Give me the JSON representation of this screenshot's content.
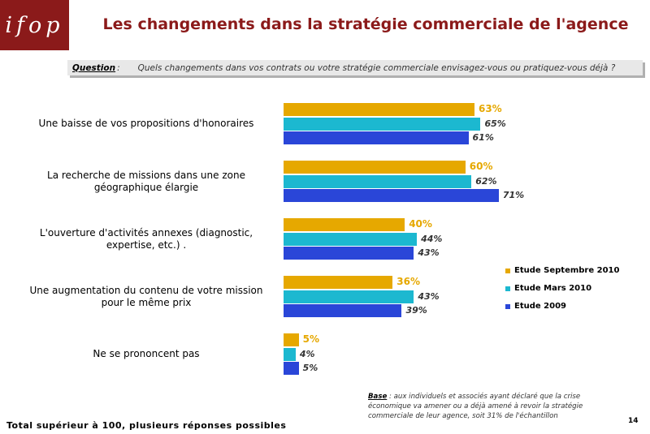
{
  "logo": {
    "text": "ifop"
  },
  "title": "Les changements dans la stratégie commerciale de l'agence",
  "question": {
    "label": "Question",
    "colon": ":",
    "text": "Quels changements dans vos contrats ou votre stratégie commerciale envisagez-vous ou pratiquez-vous déjà ?"
  },
  "chart_data": {
    "type": "bar",
    "orientation": "horizontal",
    "categories": [
      "Une baisse de vos propositions d'honoraires",
      "La recherche de missions dans une zone géographique élargie",
      "L'ouverture d'activités annexes (diagnostic, expertise, etc.) .",
      "Une augmentation du contenu de votre mission pour le même prix",
      "Ne se prononcent pas"
    ],
    "series": [
      {
        "name": "Etude Septembre 2010",
        "color": "#e6a800",
        "values": [
          63,
          60,
          40,
          36,
          5
        ],
        "labels": [
          "63%",
          "60%",
          "40%",
          "36%",
          "5%"
        ]
      },
      {
        "name": "Etude Mars 2010",
        "color": "#1cb8d0",
        "values": [
          65,
          62,
          44,
          43,
          4
        ],
        "labels": [
          "65%",
          "62%",
          "44%",
          "43%",
          "4%"
        ]
      },
      {
        "name": "Etude 2009",
        "color": "#2a46d8",
        "values": [
          61,
          71,
          43,
          39,
          5
        ],
        "labels": [
          "61%",
          "71%",
          "43%",
          "39%",
          "5%"
        ]
      }
    ],
    "unit": "%",
    "legend_position": "right"
  },
  "base_note": {
    "label": "Base",
    "text": " : aux individuels et associés ayant déclaré que la crise économique va amener ou a déjà amené à revoir la stratégie commerciale de leur agence, soit 31% de l'échantillon"
  },
  "footer": "Total supérieur à 100, plusieurs réponses possibles",
  "page_number": "14"
}
